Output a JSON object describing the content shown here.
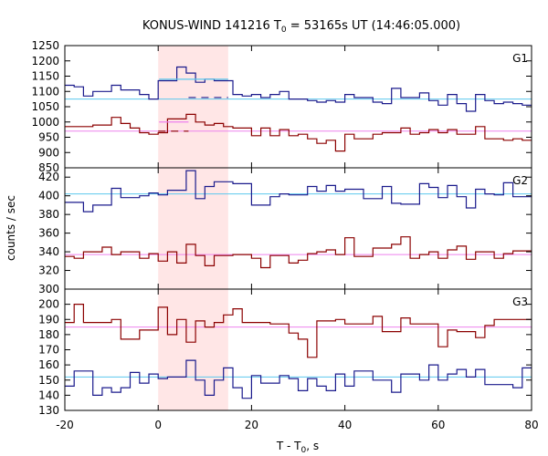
{
  "chart_data": {
    "type": "line",
    "title": "KONUS-WIND 141216 T₀ = 53165s UT (14:46:05.000)",
    "title_parts": {
      "pre": "KONUS-WIND 141216 T",
      "sub": "0",
      "post": " = 53165s UT (14:46:05.000)"
    },
    "xlabel_parts": {
      "pre": "T - T",
      "sub": "0",
      "post": ", s"
    },
    "ylabel": "counts / sec",
    "xlim": [
      -20,
      80
    ],
    "xticks": [
      -20,
      0,
      20,
      40,
      60,
      80
    ],
    "shaded_interval": [
      0,
      15
    ],
    "colors": {
      "blue": "#1a1a8c",
      "red": "#8b0000",
      "cyan": "#5bc8ee",
      "pink": "#ee82ee",
      "shade": "#ffe6e6"
    },
    "panels": [
      {
        "label": "G1",
        "ylim": [
          850,
          1250
        ],
        "yticks": [
          850,
          900,
          950,
          1000,
          1050,
          1100,
          1150,
          1200,
          1250
        ],
        "series": [
          {
            "color": "blue",
            "x": [
              -20,
              -18,
              -16,
              -14,
              -12,
              -10,
              -8,
              -6,
              -4,
              -2,
              0,
              2,
              4,
              6,
              8,
              10,
              12,
              14,
              16,
              18,
              20,
              22,
              24,
              26,
              28,
              30,
              32,
              34,
              36,
              38,
              40,
              42,
              44,
              46,
              48,
              50,
              52,
              54,
              56,
              58,
              60,
              62,
              64,
              66,
              68,
              70,
              72,
              74,
              76,
              78,
              80
            ],
            "y": [
              1120,
              1115,
              1085,
              1100,
              1100,
              1120,
              1105,
              1105,
              1090,
              1075,
              1135,
              1135,
              1180,
              1160,
              1130,
              1140,
              1135,
              1135,
              1090,
              1085,
              1090,
              1080,
              1090,
              1100,
              1075,
              1075,
              1070,
              1065,
              1070,
              1065,
              1090,
              1080,
              1080,
              1065,
              1060,
              1110,
              1080,
              1080,
              1095,
              1070,
              1055,
              1090,
              1060,
              1035,
              1090,
              1070,
              1060,
              1065,
              1060,
              1055,
              1055
            ]
          },
          {
            "color": "red",
            "x": [
              -20,
              -18,
              -16,
              -14,
              -12,
              -10,
              -8,
              -6,
              -4,
              -2,
              0,
              2,
              4,
              6,
              8,
              10,
              12,
              14,
              16,
              18,
              20,
              22,
              24,
              26,
              28,
              30,
              32,
              34,
              36,
              38,
              40,
              42,
              44,
              46,
              48,
              50,
              52,
              54,
              56,
              58,
              60,
              62,
              64,
              66,
              68,
              70,
              72,
              74,
              76,
              78,
              80
            ],
            "y": [
              985,
              985,
              985,
              990,
              990,
              1015,
              995,
              980,
              965,
              960,
              965,
              1010,
              1010,
              1025,
              1000,
              990,
              995,
              985,
              980,
              980,
              955,
              980,
              955,
              975,
              955,
              960,
              945,
              930,
              940,
              905,
              960,
              945,
              945,
              960,
              965,
              965,
              980,
              960,
              965,
              975,
              965,
              975,
              960,
              960,
              985,
              945,
              945,
              940,
              945,
              940,
              960
            ]
          }
        ],
        "levels": [
          {
            "color": "cyan",
            "y": 1075
          },
          {
            "color": "pink",
            "y": 970
          }
        ],
        "overlays": [
          {
            "color": "cyan",
            "x0": 0.2,
            "x1": 15,
            "y": 1140
          },
          {
            "color": "blue",
            "x0": 6.5,
            "x1": 15,
            "y": 1080,
            "dashed": true
          },
          {
            "color": "red",
            "x0": 0,
            "x1": 6.5,
            "y": 970,
            "dashed": true
          },
          {
            "color": "pink",
            "x0": 0.2,
            "x1": 6.5,
            "y": 1000
          }
        ]
      },
      {
        "label": "G2",
        "ylim": [
          300,
          430
        ],
        "yticks": [
          300,
          320,
          340,
          360,
          380,
          400,
          420
        ],
        "series": [
          {
            "color": "blue",
            "x": [
              -20,
              -18,
              -16,
              -14,
              -12,
              -10,
              -8,
              -6,
              -4,
              -2,
              0,
              2,
              4,
              6,
              8,
              10,
              12,
              14,
              16,
              18,
              20,
              22,
              24,
              26,
              28,
              30,
              32,
              34,
              36,
              38,
              40,
              42,
              44,
              46,
              48,
              50,
              52,
              54,
              56,
              58,
              60,
              62,
              64,
              66,
              68,
              70,
              72,
              74,
              76,
              78,
              80
            ],
            "y": [
              393,
              393,
              383,
              390,
              390,
              408,
              398,
              398,
              400,
              403,
              401,
              406,
              406,
              427,
              397,
              410,
              415,
              415,
              413,
              413,
              390,
              390,
              399,
              402,
              401,
              401,
              410,
              405,
              411,
              405,
              407,
              407,
              397,
              397,
              410,
              392,
              391,
              391,
              413,
              409,
              398,
              411,
              399,
              387,
              407,
              402,
              401,
              414,
              399,
              399,
              393
            ]
          },
          {
            "color": "red",
            "x": [
              -20,
              -18,
              -16,
              -14,
              -12,
              -10,
              -8,
              -6,
              -4,
              -2,
              0,
              2,
              4,
              6,
              8,
              10,
              12,
              14,
              16,
              18,
              20,
              22,
              24,
              26,
              28,
              30,
              32,
              34,
              36,
              38,
              40,
              42,
              44,
              46,
              48,
              50,
              52,
              54,
              56,
              58,
              60,
              62,
              64,
              66,
              68,
              70,
              72,
              74,
              76,
              78,
              80
            ],
            "y": [
              335,
              333,
              340,
              340,
              345,
              337,
              340,
              340,
              333,
              338,
              330,
              340,
              328,
              348,
              336,
              325,
              336,
              336,
              337,
              337,
              333,
              323,
              336,
              336,
              328,
              331,
              338,
              340,
              342,
              337,
              355,
              335,
              335,
              344,
              344,
              348,
              356,
              333,
              337,
              340,
              333,
              342,
              346,
              332,
              340,
              340,
              333,
              338,
              341,
              341,
              344
            ]
          }
        ],
        "levels": [
          {
            "color": "cyan",
            "y": 402
          },
          {
            "color": "pink",
            "y": 337
          }
        ]
      },
      {
        "label": "G3",
        "ylim": [
          130,
          210
        ],
        "yticks": [
          130,
          140,
          150,
          160,
          170,
          180,
          190,
          200
        ],
        "series": [
          {
            "color": "blue",
            "x": [
              -20,
              -18,
              -16,
              -14,
              -12,
              -10,
              -8,
              -6,
              -4,
              -2,
              0,
              2,
              4,
              6,
              8,
              10,
              12,
              14,
              16,
              18,
              20,
              22,
              24,
              26,
              28,
              30,
              32,
              34,
              36,
              38,
              40,
              42,
              44,
              46,
              48,
              50,
              52,
              54,
              56,
              58,
              60,
              62,
              64,
              66,
              68,
              70,
              72,
              74,
              76,
              78,
              80
            ],
            "y": [
              146,
              156,
              156,
              140,
              145,
              142,
              145,
              155,
              148,
              154,
              151,
              152,
              152,
              163,
              150,
              140,
              150,
              158,
              145,
              138,
              153,
              148,
              148,
              153,
              151,
              143,
              151,
              146,
              143,
              154,
              146,
              156,
              156,
              150,
              150,
              142,
              154,
              154,
              150,
              160,
              150,
              154,
              157,
              152,
              157,
              147,
              147,
              147,
              145,
              158,
              158
            ]
          },
          {
            "color": "red",
            "x": [
              -20,
              -18,
              -16,
              -14,
              -12,
              -10,
              -8,
              -6,
              -4,
              -2,
              0,
              2,
              4,
              6,
              8,
              10,
              12,
              14,
              16,
              18,
              20,
              22,
              24,
              26,
              28,
              30,
              32,
              34,
              36,
              38,
              40,
              42,
              44,
              46,
              48,
              50,
              52,
              54,
              56,
              58,
              60,
              62,
              64,
              66,
              68,
              70,
              72,
              74,
              76,
              78,
              80
            ],
            "y": [
              188,
              200,
              188,
              188,
              188,
              190,
              177,
              177,
              183,
              183,
              198,
              180,
              190,
              175,
              189,
              185,
              188,
              193,
              197,
              188,
              188,
              188,
              187,
              187,
              181,
              177,
              165,
              189,
              189,
              190,
              187,
              187,
              187,
              192,
              182,
              182,
              191,
              187,
              187,
              187,
              172,
              183,
              182,
              182,
              178,
              186,
              190,
              190,
              190,
              190,
              190
            ]
          }
        ],
        "levels": [
          {
            "color": "cyan",
            "y": 152
          },
          {
            "color": "pink",
            "y": 185
          }
        ]
      }
    ]
  }
}
